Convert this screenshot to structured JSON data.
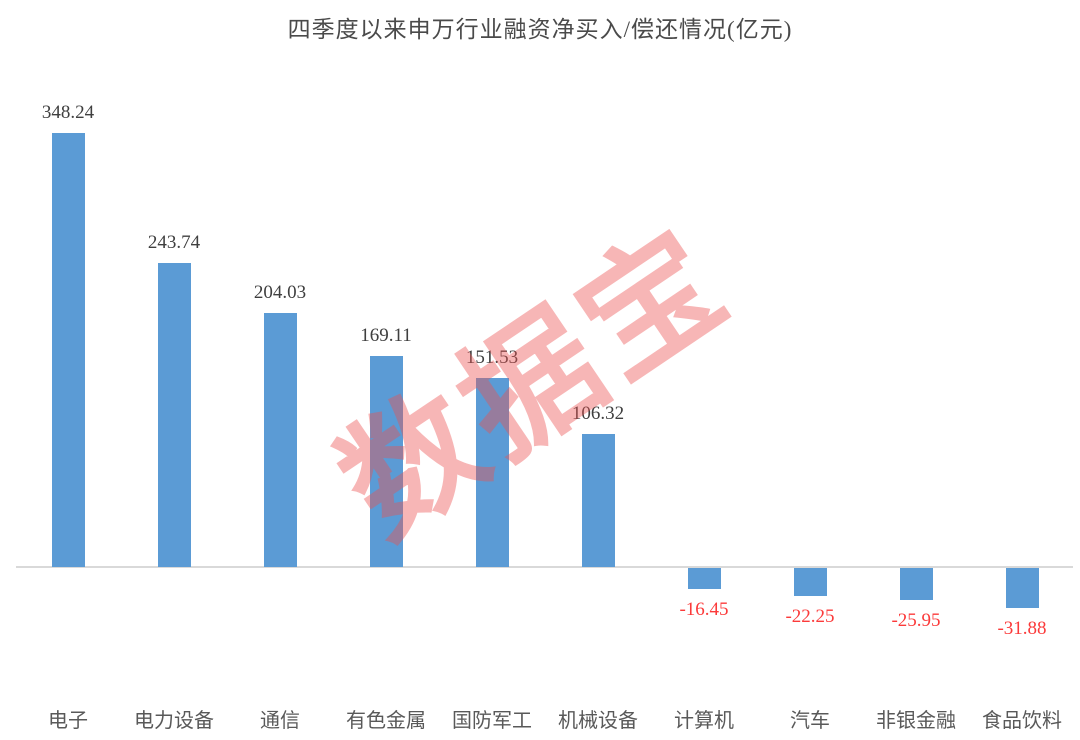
{
  "title": "四季度以来申万行业融资净买入/偿还情况(亿元)",
  "watermark_text": "数据宝",
  "colors": {
    "bar": "#5B9BD5",
    "positive_label": "#3f3f3f",
    "negative_label": "#fb3a3a",
    "axis_line": "#d9d9d9",
    "title": "#4a4a4a",
    "category_label": "#595959",
    "watermark": "rgba(235,80,80,0.42)"
  },
  "chart_data": {
    "type": "bar",
    "title": "四季度以来申万行业融资净买入/偿还情况(亿元)",
    "categories": [
      "电子",
      "电力设备",
      "通信",
      "有色金属",
      "国防军工",
      "机械设备",
      "计算机",
      "汽车",
      "非银金融",
      "食品饮料"
    ],
    "values": [
      348.24,
      243.74,
      204.03,
      169.11,
      151.53,
      106.32,
      -16.45,
      -22.25,
      -25.95,
      -31.88
    ],
    "value_labels": [
      "348.24",
      "243.74",
      "204.03",
      "169.11",
      "151.53",
      "106.32",
      "-16.45",
      "-22.25",
      "-25.95",
      "-31.88"
    ],
    "xlabel": "",
    "ylabel": "",
    "ylim": [
      -60,
      380
    ],
    "grid": false,
    "legend": "none",
    "data_label_position": "outside-end",
    "negative_labels_color": "#fb3a3a",
    "bar_color": "#5B9BD5"
  }
}
